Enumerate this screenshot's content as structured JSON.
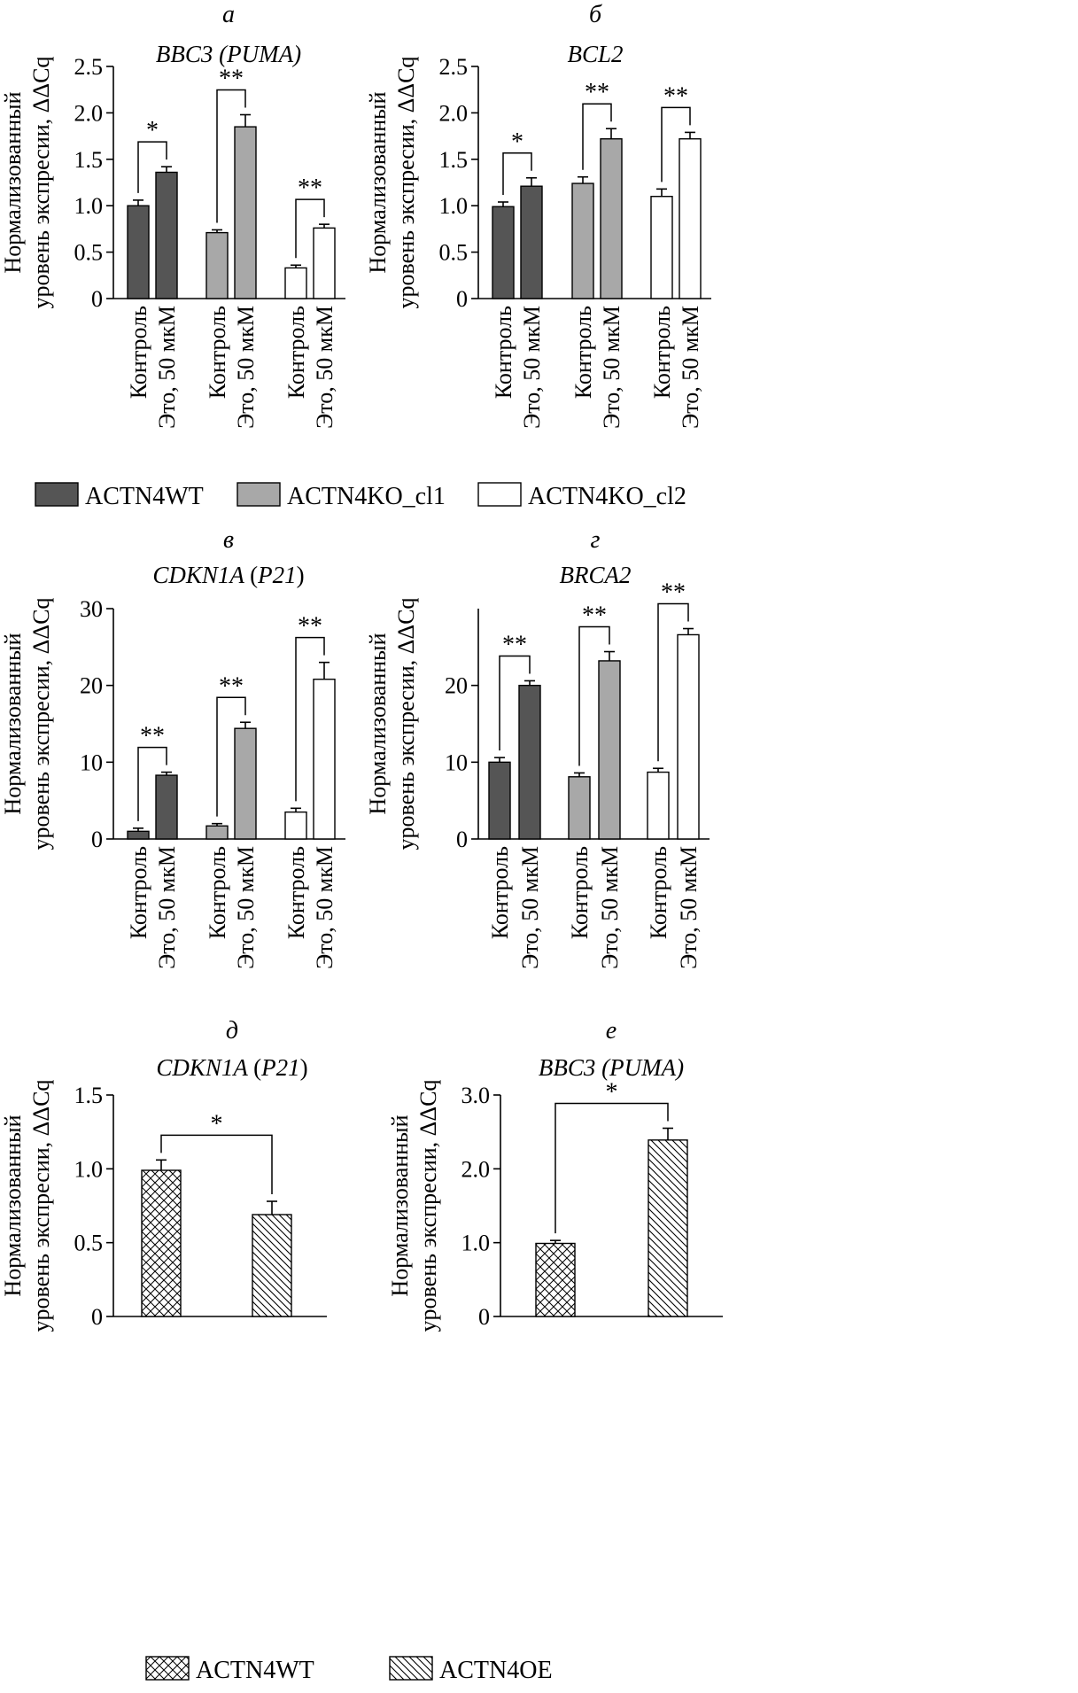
{
  "colors": {
    "ACTN4WT": "#555555",
    "ACTN4KO_cl1": "#a8a8a8",
    "ACTN4KO_cl2": "#ffffff",
    "axis": "#000000"
  },
  "ylabel_line1": "Нормализованный",
  "ylabel_line2": "уровень экспресии, ΔΔCq",
  "category_labels": [
    "Контроль",
    "Это, 50 мкМ"
  ],
  "legend_top": [
    {
      "name": "ACTN4WT",
      "fill": "dark"
    },
    {
      "name": "ACTN4KO_cl1",
      "fill": "light"
    },
    {
      "name": "ACTN4KO_cl2",
      "fill": "white"
    }
  ],
  "legend_bottom": [
    {
      "name": "ACTN4WT",
      "fill": "crosshatch"
    },
    {
      "name": "ACTN4OE",
      "fill": "diagonal"
    }
  ],
  "chart_data": [
    {
      "panel": "а",
      "title": "BBC3 (PUMA)",
      "type": "bar",
      "ylim": [
        0,
        2.5
      ],
      "yticks": [
        0,
        0.5,
        1.0,
        1.5,
        2.0,
        2.5
      ],
      "ytick_labels": [
        "0",
        "0.5",
        "1.0",
        "1.5",
        "2.0",
        "2.5"
      ],
      "groups": [
        {
          "series": "ACTN4WT",
          "fill": "dark",
          "values": [
            1.0,
            1.36
          ],
          "errors": [
            0.06,
            0.06
          ],
          "sig": "*"
        },
        {
          "series": "ACTN4KO_cl1",
          "fill": "light",
          "values": [
            0.71,
            1.85
          ],
          "errors": [
            0.03,
            0.13
          ],
          "sig": "**"
        },
        {
          "series": "ACTN4KO_cl2",
          "fill": "white",
          "values": [
            0.33,
            0.76
          ],
          "errors": [
            0.03,
            0.04
          ],
          "sig": "**"
        }
      ]
    },
    {
      "panel": "б",
      "title": "BCL2",
      "type": "bar",
      "ylim": [
        0,
        2.5
      ],
      "yticks": [
        0,
        0.5,
        1.0,
        1.5,
        2.0,
        2.5
      ],
      "ytick_labels": [
        "0",
        "0.5",
        "1.0",
        "1.5",
        "2.0",
        "2.5"
      ],
      "groups": [
        {
          "series": "ACTN4WT",
          "fill": "dark",
          "values": [
            0.99,
            1.21
          ],
          "errors": [
            0.05,
            0.09
          ],
          "sig": "*"
        },
        {
          "series": "ACTN4KO_cl1",
          "fill": "light",
          "values": [
            1.24,
            1.72
          ],
          "errors": [
            0.07,
            0.11
          ],
          "sig": "**"
        },
        {
          "series": "ACTN4KO_cl2",
          "fill": "white",
          "values": [
            1.1,
            1.72
          ],
          "errors": [
            0.08,
            0.07
          ],
          "sig": "**"
        }
      ]
    },
    {
      "panel": "в",
      "title": "CDKN1A (P21)",
      "type": "bar",
      "ylim": [
        0,
        30
      ],
      "yticks": [
        0,
        10,
        20,
        30
      ],
      "ytick_labels": [
        "0",
        "10",
        "20",
        "30"
      ],
      "groups": [
        {
          "series": "ACTN4WT",
          "fill": "dark",
          "values": [
            1.0,
            8.3
          ],
          "errors": [
            0.4,
            0.4
          ],
          "sig": "**"
        },
        {
          "series": "ACTN4KO_cl1",
          "fill": "light",
          "values": [
            1.7,
            14.4
          ],
          "errors": [
            0.3,
            0.8
          ],
          "sig": "**"
        },
        {
          "series": "ACTN4KO_cl2",
          "fill": "white",
          "values": [
            3.5,
            20.8
          ],
          "errors": [
            0.5,
            2.2
          ],
          "sig": "**"
        }
      ]
    },
    {
      "panel": "г",
      "title": "BRCA2",
      "type": "bar",
      "ylim": [
        0,
        30
      ],
      "yticks": [
        0,
        10,
        20
      ],
      "ytick_labels": [
        "0",
        "10",
        "20"
      ],
      "groups": [
        {
          "series": "ACTN4WT",
          "fill": "dark",
          "values": [
            10.0,
            20.0
          ],
          "errors": [
            0.6,
            0.6
          ],
          "sig": "**"
        },
        {
          "series": "ACTN4KO_cl1",
          "fill": "light",
          "values": [
            8.1,
            23.2
          ],
          "errors": [
            0.5,
            1.2
          ],
          "sig": "**"
        },
        {
          "series": "ACTN4KO_cl2",
          "fill": "white",
          "values": [
            8.7,
            26.6
          ],
          "errors": [
            0.5,
            0.8
          ],
          "sig": "**"
        }
      ]
    },
    {
      "panel": "д",
      "title": "CDKN1A (P21)",
      "type": "bar",
      "ylim": [
        0,
        1.5
      ],
      "yticks": [
        0,
        0.5,
        1.0,
        1.5
      ],
      "ytick_labels": [
        "0",
        "0.5",
        "1.0",
        "1.5"
      ],
      "bars": [
        {
          "series": "ACTN4WT",
          "fill": "crosshatch",
          "value": 0.99,
          "error": 0.07
        },
        {
          "series": "ACTN4OE",
          "fill": "diagonal",
          "value": 0.69,
          "error": 0.09
        }
      ],
      "sig": "*"
    },
    {
      "panel": "е",
      "title": "BBC3 (PUMA)",
      "type": "bar",
      "ylim": [
        0,
        3.0
      ],
      "yticks": [
        0,
        1.0,
        2.0,
        3.0
      ],
      "ytick_labels": [
        "0",
        "1.0",
        "2.0",
        "3.0"
      ],
      "bars": [
        {
          "series": "ACTN4WT",
          "fill": "crosshatch",
          "value": 0.99,
          "error": 0.04
        },
        {
          "series": "ACTN4OE",
          "fill": "diagonal",
          "value": 2.39,
          "error": 0.16
        }
      ],
      "sig": "*"
    }
  ]
}
